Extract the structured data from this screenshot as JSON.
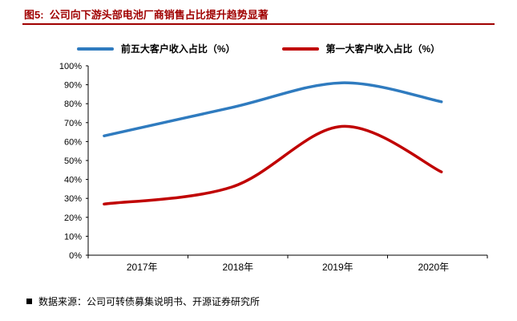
{
  "header": {
    "title": "图5:  公司向下游头部电池厂商销售占比提升趋势显著",
    "accent_color": "#A00000"
  },
  "legend": {
    "items": [
      {
        "label": "前五大客户收入占比（%）",
        "color": "#2F7BBF"
      },
      {
        "label": "第一大客户收入占比（%）",
        "color": "#C00000"
      }
    ]
  },
  "chart_data": {
    "type": "line",
    "title": "公司向下游头部电池厂商销售占比提升趋势显著",
    "categories": [
      "2017年",
      "2018年",
      "2019年",
      "2020年"
    ],
    "series": [
      {
        "name": "前五大客户收入占比（%）",
        "values": [
          63,
          78,
          91,
          81
        ],
        "color": "#2F7BBF"
      },
      {
        "name": "第一大客户收入占比（%）",
        "values": [
          27,
          36,
          68,
          44
        ],
        "color": "#C00000"
      }
    ],
    "ylim": [
      0,
      100
    ],
    "y_ticks": [
      "100%",
      "90%",
      "80%",
      "70%",
      "60%",
      "50%",
      "40%",
      "30%",
      "20%",
      "10%",
      "0%"
    ],
    "grid": false,
    "smooth": true,
    "legend_position": "top",
    "axis_color": "#000000"
  },
  "footer": {
    "source": "数据来源：公司可转债募集说明书、开源证券研究所"
  }
}
